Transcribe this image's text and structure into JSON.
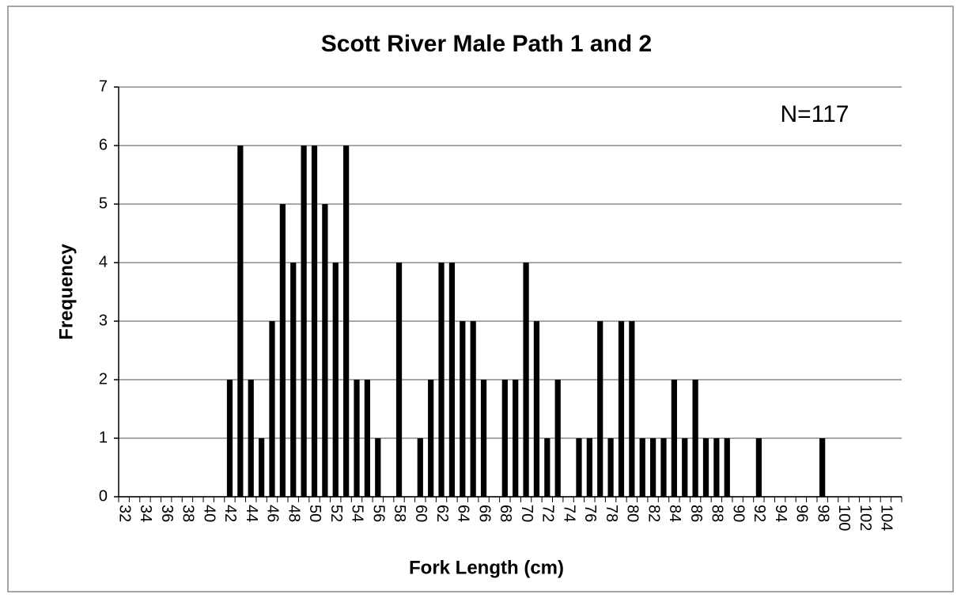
{
  "chart_data": {
    "type": "bar",
    "title": "Scott River Male Path 1 and 2",
    "x_label": "Fork Length (cm)",
    "y_label": "Frequency",
    "annotation": "N=117",
    "categories": [
      "32",
      null,
      "34",
      null,
      "36",
      null,
      "38",
      null,
      "40",
      null,
      "42",
      null,
      "44",
      null,
      "46",
      null,
      "48",
      null,
      "50",
      null,
      "52",
      null,
      "54",
      null,
      "56",
      null,
      "58",
      null,
      "60",
      null,
      "62",
      null,
      "64",
      null,
      "66",
      null,
      "68",
      null,
      "70",
      null,
      "72",
      null,
      "74",
      null,
      "76",
      null,
      "78",
      null,
      "80",
      null,
      "82",
      null,
      "84",
      null,
      "86",
      null,
      "88",
      null,
      "90",
      null,
      "92",
      null,
      "94",
      null,
      "96",
      null,
      "98",
      null,
      "100",
      null,
      "102",
      null,
      "104",
      null
    ],
    "values": [
      0,
      0,
      0,
      0,
      0,
      0,
      0,
      0,
      0,
      0,
      2,
      6,
      2,
      1,
      3,
      5,
      4,
      6,
      6,
      5,
      4,
      6,
      2,
      2,
      1,
      0,
      4,
      0,
      1,
      2,
      4,
      4,
      3,
      3,
      2,
      0,
      2,
      2,
      4,
      3,
      1,
      2,
      0,
      1,
      1,
      3,
      1,
      3,
      3,
      1,
      1,
      1,
      2,
      1,
      2,
      1,
      1,
      1,
      0,
      0,
      1,
      0,
      0,
      0,
      0,
      0,
      1,
      0,
      0,
      0,
      0,
      0,
      0,
      0
    ],
    "color": "#000000",
    "ylim": [
      0,
      7
    ],
    "yticks": [
      0,
      1,
      2,
      3,
      4,
      5,
      6,
      7
    ],
    "grid": true
  }
}
